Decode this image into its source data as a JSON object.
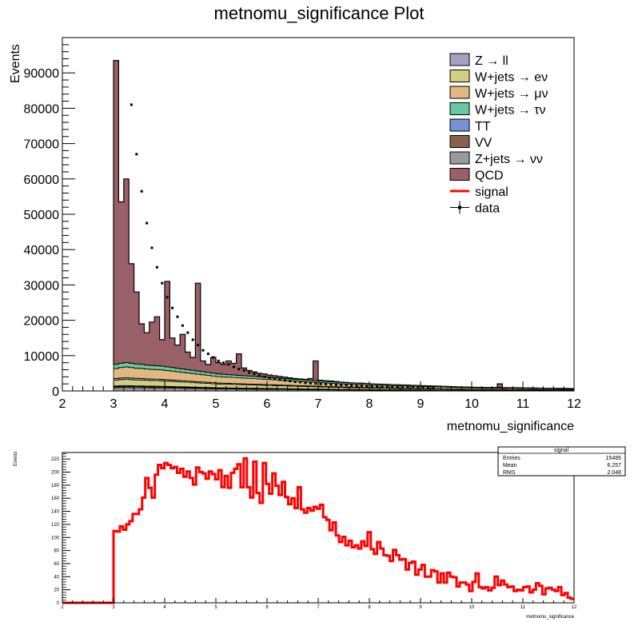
{
  "chart_data": [
    {
      "type": "area",
      "title": "metnomu_significance Plot",
      "xlabel": "metnomu_significance",
      "ylabel": "Events",
      "xlim": [
        2,
        12
      ],
      "ylim": [
        0,
        100000
      ],
      "x_ticks": [
        "2",
        "3",
        "4",
        "5",
        "6",
        "7",
        "8",
        "9",
        "10",
        "11",
        "12"
      ],
      "y_ticks": [
        "0",
        "10000",
        "20000",
        "30000",
        "40000",
        "50000",
        "60000",
        "70000",
        "80000",
        "90000"
      ],
      "bin_width": 0.1,
      "legend_position": "top-right",
      "legend": [
        {
          "label": "Z → ll",
          "kind": "fill",
          "color": "#a8a0c0"
        },
        {
          "label": "W+jets → eν",
          "kind": "fill",
          "color": "#d0d080"
        },
        {
          "label": "W+jets → μν",
          "kind": "fill",
          "color": "#e0b880"
        },
        {
          "label": "W+jets → τν",
          "kind": "fill",
          "color": "#68c8a0"
        },
        {
          "label": "TT",
          "kind": "fill",
          "color": "#7890d8"
        },
        {
          "label": "VV",
          "kind": "fill",
          "color": "#8a6048"
        },
        {
          "label": "Z+jets → νν",
          "kind": "fill",
          "color": "#9a9a9a"
        },
        {
          "label": "QCD",
          "kind": "fill",
          "color": "#9a6068"
        },
        {
          "label": "signal",
          "kind": "line",
          "color": "#ff0000"
        },
        {
          "label": "data",
          "kind": "marker",
          "color": "#000000"
        }
      ],
      "total_stack": [
        93500,
        53500,
        60000,
        36000,
        28000,
        19000,
        16500,
        19500,
        21000,
        14500,
        31000,
        15000,
        13000,
        16000,
        11000,
        9500,
        30500,
        8500,
        7500,
        9500,
        8000,
        7500,
        8500,
        7800,
        10500,
        6500,
        5800,
        5400,
        5000,
        4800,
        4500,
        4300,
        4100,
        3900,
        3700,
        3500,
        3400,
        3300,
        3500,
        8500,
        3000,
        2900,
        2800,
        2650,
        2500,
        2400,
        2300,
        2250,
        2200,
        2100,
        2000,
        1950,
        1900,
        1850,
        1800,
        1750,
        1700,
        1650,
        1600,
        1550,
        1500,
        1450,
        1400,
        1350,
        1300,
        1250,
        1200,
        1150,
        1100,
        1080,
        1050,
        1020,
        1000,
        980,
        960,
        2000,
        940,
        920,
        900,
        880,
        860,
        840,
        820,
        800,
        780,
        760,
        740,
        720,
        700,
        680
      ],
      "ewk_stack": [
        7500,
        7800,
        8000,
        7800,
        7600,
        7500,
        7300,
        7200,
        7100,
        7000,
        6800,
        6600,
        6400,
        6200,
        6000,
        5800,
        5600,
        5400,
        5200,
        5000,
        4800,
        4700,
        4600,
        4500,
        4400,
        4300,
        4200,
        4100,
        4000,
        3900,
        3800,
        3700,
        3600,
        3500,
        3400,
        3300,
        3200,
        3100,
        3000,
        2900,
        2800,
        2700,
        2600,
        2500,
        2400,
        2300,
        2250,
        2200,
        2150,
        2100,
        2000,
        1950,
        1900,
        1850,
        1800,
        1750,
        1700,
        1650,
        1600,
        1550,
        1500,
        1450,
        1400,
        1350,
        1300,
        1250,
        1200,
        1150,
        1100,
        1080,
        1050,
        1020,
        1000,
        980,
        960,
        950,
        940,
        920,
        900,
        880,
        860,
        840,
        820,
        800,
        780,
        760,
        740,
        720,
        700,
        680
      ],
      "data_points": [
        {
          "x": 3.35,
          "y": 81000
        },
        {
          "x": 3.45,
          "y": 67000
        },
        {
          "x": 3.55,
          "y": 56500
        },
        {
          "x": 3.65,
          "y": 47500
        },
        {
          "x": 3.75,
          "y": 40500
        },
        {
          "x": 3.85,
          "y": 35000
        },
        {
          "x": 3.95,
          "y": 30500
        },
        {
          "x": 4.05,
          "y": 26500
        },
        {
          "x": 4.15,
          "y": 23500
        },
        {
          "x": 4.25,
          "y": 21000
        },
        {
          "x": 4.35,
          "y": 18500
        },
        {
          "x": 4.45,
          "y": 16500
        },
        {
          "x": 4.55,
          "y": 14500
        },
        {
          "x": 4.65,
          "y": 13000
        },
        {
          "x": 4.75,
          "y": 11500
        },
        {
          "x": 4.85,
          "y": 10500
        },
        {
          "x": 4.95,
          "y": 9500
        },
        {
          "x": 5.05,
          "y": 8500
        },
        {
          "x": 5.15,
          "y": 8000
        },
        {
          "x": 5.25,
          "y": 7500
        },
        {
          "x": 5.35,
          "y": 6800
        },
        {
          "x": 5.45,
          "y": 6200
        },
        {
          "x": 5.55,
          "y": 5800
        },
        {
          "x": 5.65,
          "y": 5200
        },
        {
          "x": 5.75,
          "y": 4800
        },
        {
          "x": 5.85,
          "y": 4400
        },
        {
          "x": 5.95,
          "y": 4000
        },
        {
          "x": 6.05,
          "y": 3700
        },
        {
          "x": 6.15,
          "y": 3400
        },
        {
          "x": 6.25,
          "y": 3200
        },
        {
          "x": 6.35,
          "y": 3000
        },
        {
          "x": 6.45,
          "y": 2800
        },
        {
          "x": 6.55,
          "y": 2600
        },
        {
          "x": 6.65,
          "y": 2500
        },
        {
          "x": 6.75,
          "y": 2300
        },
        {
          "x": 6.85,
          "y": 2200
        },
        {
          "x": 6.95,
          "y": 2100
        },
        {
          "x": 7.05,
          "y": 2000
        },
        {
          "x": 7.15,
          "y": 1900
        },
        {
          "x": 7.25,
          "y": 1800
        },
        {
          "x": 7.35,
          "y": 1700
        },
        {
          "x": 7.45,
          "y": 1650
        },
        {
          "x": 7.55,
          "y": 1600
        },
        {
          "x": 7.65,
          "y": 1500
        },
        {
          "x": 7.75,
          "y": 1450
        },
        {
          "x": 7.85,
          "y": 1400
        },
        {
          "x": 7.95,
          "y": 1350
        },
        {
          "x": 8.05,
          "y": 1300
        },
        {
          "x": 8.15,
          "y": 1250
        },
        {
          "x": 8.25,
          "y": 1200
        },
        {
          "x": 8.35,
          "y": 1150
        },
        {
          "x": 8.45,
          "y": 1100
        },
        {
          "x": 8.55,
          "y": 1050
        },
        {
          "x": 8.65,
          "y": 1000
        },
        {
          "x": 8.75,
          "y": 980
        },
        {
          "x": 8.85,
          "y": 950
        },
        {
          "x": 8.95,
          "y": 920
        },
        {
          "x": 9.05,
          "y": 900
        },
        {
          "x": 9.15,
          "y": 870
        },
        {
          "x": 9.25,
          "y": 850
        }
      ]
    },
    {
      "type": "line",
      "xlabel": "metnomu_significance",
      "ylabel": "Events",
      "xlim": [
        2,
        12
      ],
      "ylim": [
        0,
        230
      ],
      "x_ticks": [
        "2",
        "3",
        "4",
        "5",
        "6",
        "7",
        "8",
        "9",
        "10",
        "11",
        "12"
      ],
      "y_ticks": [
        "0",
        "20",
        "40",
        "60",
        "80",
        "100",
        "120",
        "140",
        "160",
        "180",
        "200",
        "220"
      ],
      "bin_width": 0.1,
      "series_color": "#ff0000",
      "signal_values": [
        110,
        109,
        117,
        112,
        120,
        125,
        136,
        136,
        143,
        161,
        191,
        176,
        161,
        196,
        211,
        206,
        214,
        211,
        206,
        208,
        199,
        205,
        193,
        201,
        191,
        181,
        207,
        200,
        198,
        190,
        201,
        197,
        189,
        203,
        177,
        194,
        176,
        199,
        205,
        212,
        177,
        221,
        177,
        161,
        216,
        168,
        153,
        214,
        182,
        167,
        198,
        179,
        165,
        185,
        162,
        151,
        160,
        145,
        177,
        143,
        138,
        145,
        141,
        147,
        144,
        150,
        131,
        127,
        111,
        123,
        103,
        93,
        101,
        88,
        95,
        85,
        88,
        83,
        94,
        87,
        108,
        82,
        75,
        93,
        83,
        73,
        72,
        64,
        81,
        73,
        66,
        67,
        51,
        61,
        63,
        43,
        51,
        58,
        40,
        40,
        50,
        48,
        31,
        45,
        31,
        46,
        40,
        39,
        25,
        31,
        31,
        28,
        18,
        32,
        45,
        24,
        22,
        24,
        19,
        23,
        40,
        27,
        34,
        28,
        24,
        25,
        18,
        20,
        19,
        24,
        25,
        16,
        20,
        30,
        26,
        13,
        22,
        23,
        20,
        18,
        24,
        12,
        15,
        8,
        6
      ],
      "stats_box": {
        "title": "signal",
        "rows": [
          {
            "label": "Entries",
            "value": "15485"
          },
          {
            "label": "Mean",
            "value": "6.257"
          },
          {
            "label": "RMS",
            "value": "2.048"
          }
        ]
      }
    }
  ]
}
